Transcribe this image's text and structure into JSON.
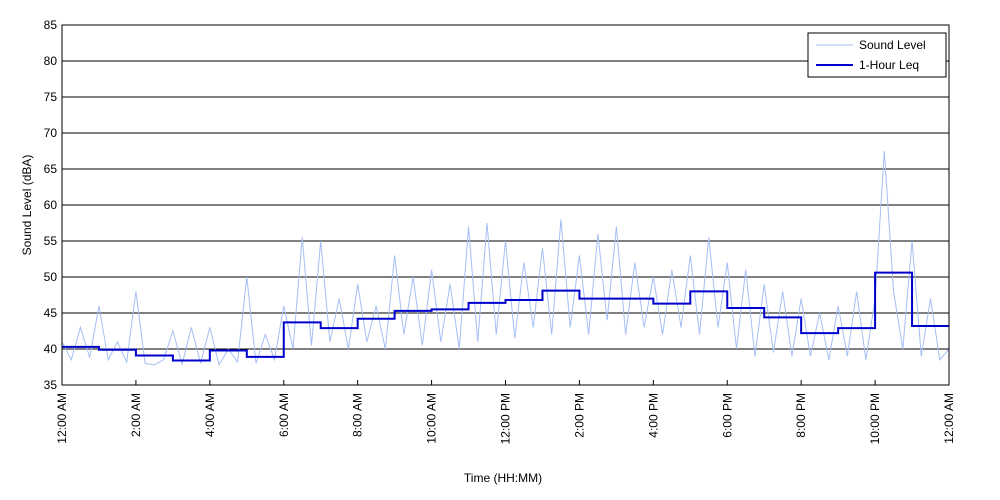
{
  "chart_data": {
    "type": "line",
    "xlabel": "Time (HH:MM)",
    "ylabel": "Sound Level (dBA)",
    "xlim": [
      0,
      24
    ],
    "ylim": [
      35,
      85
    ],
    "yticks": [
      35,
      40,
      45,
      50,
      55,
      60,
      65,
      70,
      75,
      80,
      85
    ],
    "xticks": [
      {
        "value": 0,
        "label": "12:00 AM"
      },
      {
        "value": 2,
        "label": "2:00 AM"
      },
      {
        "value": 4,
        "label": "4:00 AM"
      },
      {
        "value": 6,
        "label": "6:00 AM"
      },
      {
        "value": 8,
        "label": "8:00 AM"
      },
      {
        "value": 10,
        "label": "10:00 AM"
      },
      {
        "value": 12,
        "label": "12:00 PM"
      },
      {
        "value": 14,
        "label": "2:00 PM"
      },
      {
        "value": 16,
        "label": "4:00 PM"
      },
      {
        "value": 18,
        "label": "6:00 PM"
      },
      {
        "value": 20,
        "label": "8:00 PM"
      },
      {
        "value": 22,
        "label": "10:00 PM"
      },
      {
        "value": 24,
        "label": "12:00 AM"
      }
    ],
    "grid": true,
    "legend": "upper right",
    "series": [
      {
        "name": "Sound Level",
        "color": "#a6bff5",
        "drawstyle": "default",
        "x": [
          0,
          0.25,
          0.5,
          0.75,
          1,
          1.25,
          1.5,
          1.75,
          2,
          2.25,
          2.5,
          2.75,
          3,
          3.25,
          3.5,
          3.75,
          4,
          4.25,
          4.5,
          4.75,
          5,
          5.25,
          5.5,
          5.75,
          6,
          6.25,
          6.5,
          6.75,
          7,
          7.25,
          7.5,
          7.75,
          8,
          8.25,
          8.5,
          8.75,
          9,
          9.25,
          9.5,
          9.75,
          10,
          10.25,
          10.5,
          10.75,
          11,
          11.25,
          11.5,
          11.75,
          12,
          12.25,
          12.5,
          12.75,
          13,
          13.25,
          13.5,
          13.75,
          14,
          14.25,
          14.5,
          14.75,
          15,
          15.25,
          15.5,
          15.75,
          16,
          16.25,
          16.5,
          16.75,
          17,
          17.25,
          17.5,
          17.75,
          18,
          18.25,
          18.5,
          18.75,
          19,
          19.25,
          19.5,
          19.75,
          20,
          20.25,
          20.5,
          20.75,
          21,
          21.25,
          21.5,
          21.75,
          22,
          22.25,
          22.5,
          22.75,
          23,
          23.25,
          23.5,
          23.75,
          24
        ],
        "values": [
          41,
          38.5,
          43,
          38.8,
          46,
          38.5,
          41,
          38.2,
          48,
          38,
          37.8,
          38.5,
          42.5,
          37.9,
          43,
          38,
          43,
          37.8,
          40,
          38.2,
          50,
          38,
          42,
          38.5,
          46,
          40,
          55.5,
          40.5,
          55,
          41,
          47,
          40,
          49,
          41,
          46,
          40,
          53,
          42,
          50,
          40.5,
          51,
          41,
          49,
          40,
          57,
          41,
          57.5,
          42,
          55,
          41.5,
          52,
          43,
          54,
          42,
          58,
          43,
          53,
          42,
          56,
          44,
          57,
          42,
          52,
          43,
          50,
          42,
          51,
          43,
          53,
          42,
          55.5,
          43,
          52,
          40,
          51,
          39,
          49,
          39.5,
          48,
          39,
          47,
          39,
          45,
          38.5,
          46,
          39,
          48,
          38.5,
          47,
          67.5,
          48,
          40,
          55,
          39,
          47,
          38.5,
          40
        ]
      },
      {
        "name": "1-Hour Leq",
        "color": "#0000cc",
        "drawstyle": "steps-post",
        "x": [
          0,
          1,
          2,
          3,
          4,
          5,
          6,
          7,
          8,
          9,
          10,
          11,
          12,
          13,
          14,
          15,
          16,
          17,
          18,
          19,
          20,
          21,
          22,
          23
        ],
        "values": [
          40.3,
          39.9,
          39.1,
          38.4,
          39.8,
          38.9,
          43.7,
          42.9,
          44.2,
          45.3,
          45.5,
          46.4,
          46.8,
          48.1,
          47.0,
          47.0,
          46.3,
          48.0,
          45.7,
          44.4,
          42.2,
          42.9,
          50.6,
          43.2
        ]
      }
    ]
  }
}
